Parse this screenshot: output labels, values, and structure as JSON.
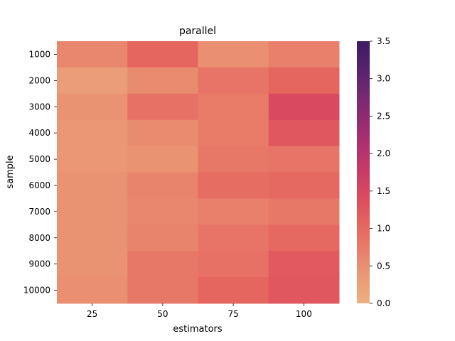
{
  "chart_data": {
    "type": "heatmap",
    "title": "parallel",
    "xlabel": "estimators",
    "ylabel": "sample",
    "x_categories": [
      "25",
      "50",
      "75",
      "100"
    ],
    "y_categories": [
      "1000",
      "2000",
      "3000",
      "4000",
      "5000",
      "6000",
      "7000",
      "8000",
      "9000",
      "10000"
    ],
    "values": [
      [
        0.6,
        1.05,
        0.5,
        0.7
      ],
      [
        0.3,
        0.55,
        0.85,
        1.05
      ],
      [
        0.45,
        0.9,
        0.75,
        1.45
      ],
      [
        0.4,
        0.55,
        0.75,
        1.25
      ],
      [
        0.4,
        0.45,
        0.8,
        0.85
      ],
      [
        0.45,
        0.65,
        0.95,
        1.0
      ],
      [
        0.45,
        0.6,
        0.7,
        0.8
      ],
      [
        0.45,
        0.65,
        0.85,
        1.0
      ],
      [
        0.45,
        0.8,
        0.9,
        1.2
      ],
      [
        0.5,
        0.8,
        1.05,
        1.25
      ]
    ],
    "colorbar": {
      "min": 0.0,
      "max": 3.5,
      "ticks": [
        "0.0",
        "0.5",
        "1.0",
        "1.5",
        "2.0",
        "2.5",
        "3.0",
        "3.5"
      ]
    },
    "colormap": [
      "#edb081",
      "#eb9a75",
      "#e8806b",
      "#e5655f",
      "#dc4c5f",
      "#c93b67",
      "#b0316e",
      "#922b72",
      "#732873",
      "#55226e",
      "#3d1b63"
    ]
  }
}
